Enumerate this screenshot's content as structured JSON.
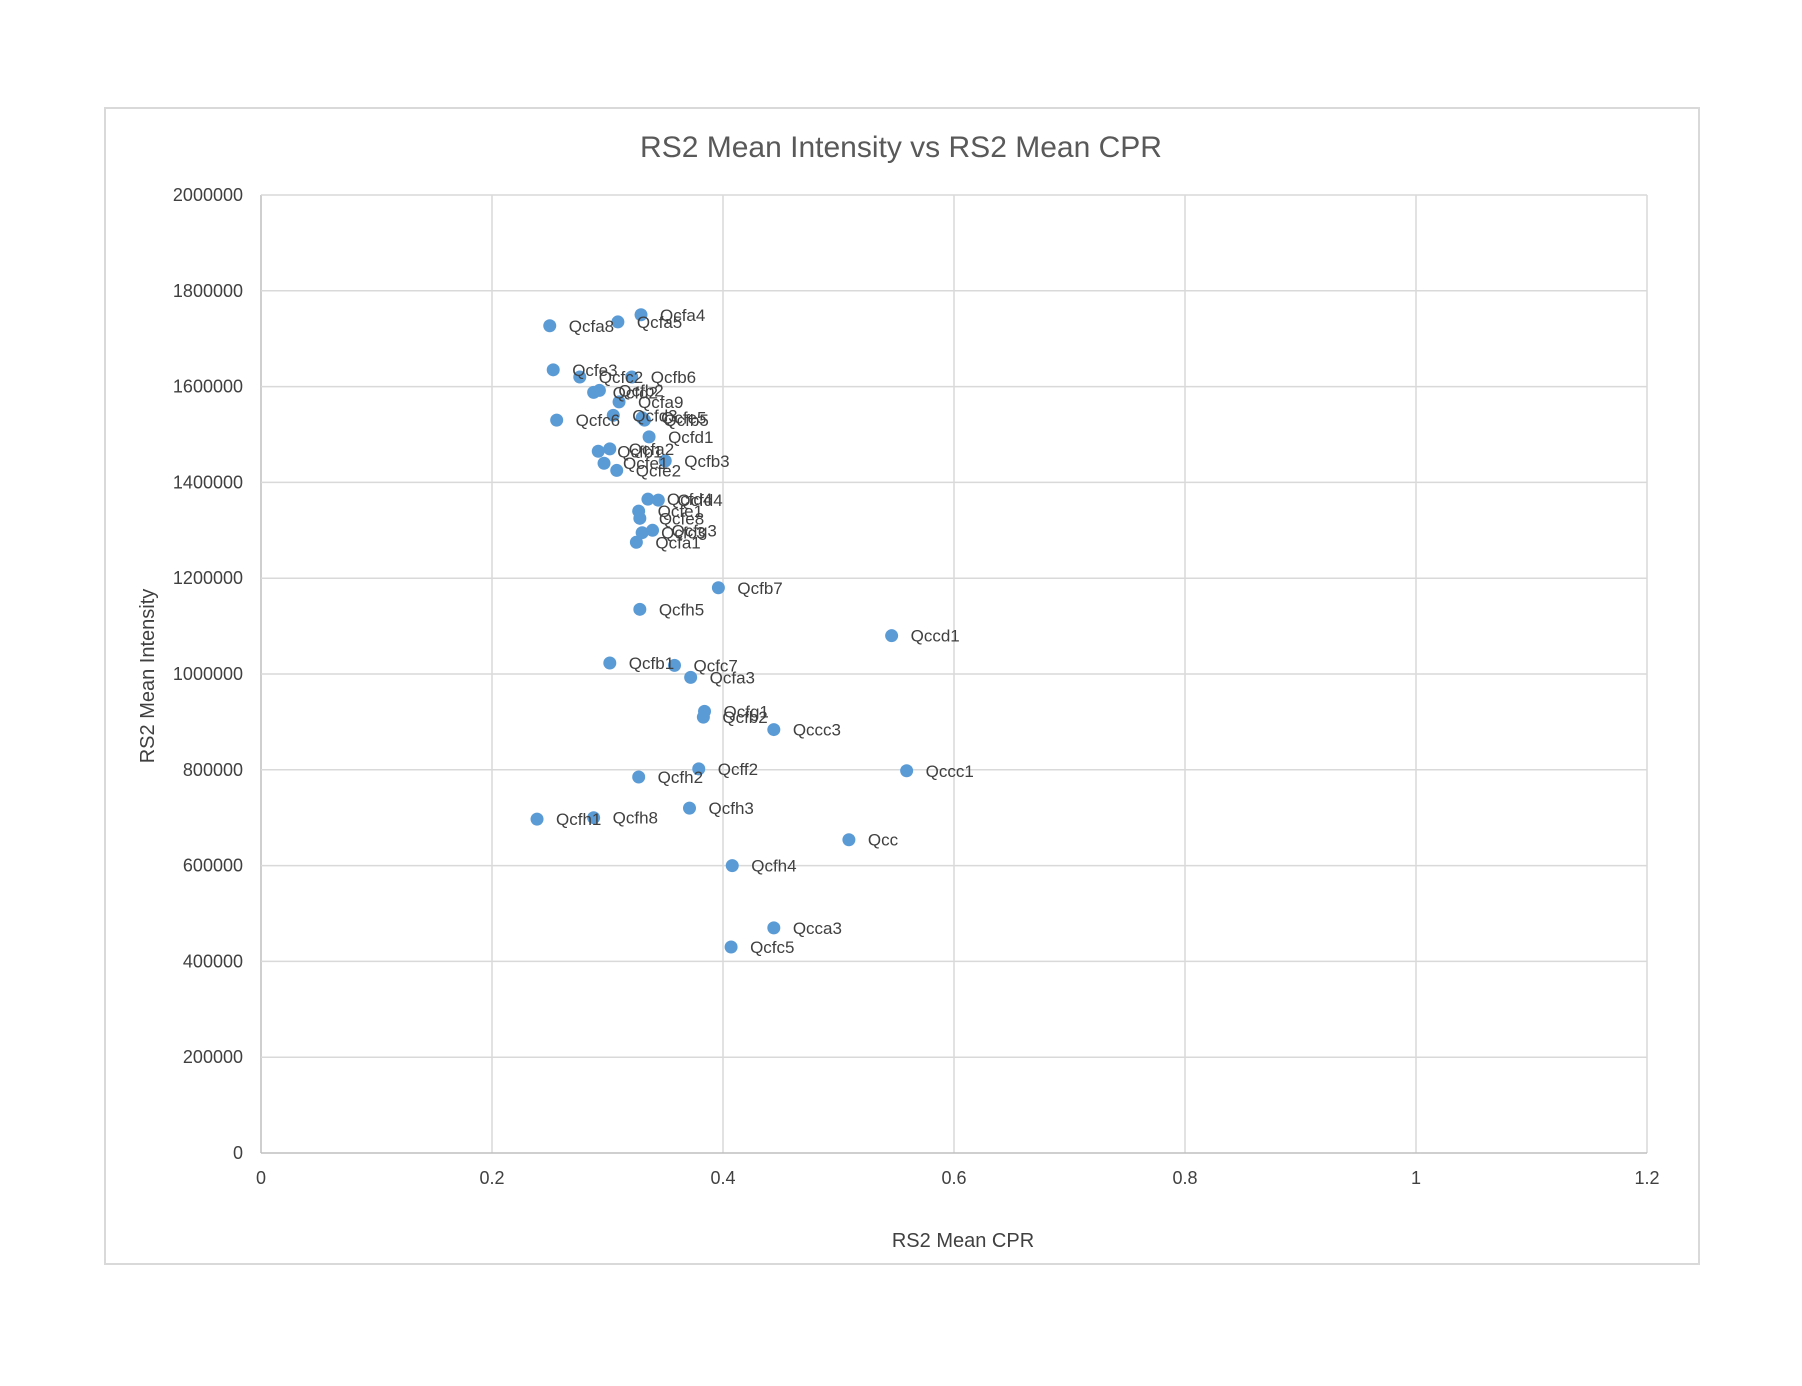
{
  "chart_data": {
    "type": "scatter",
    "title": "RS2 Mean Intensity vs RS2 Mean CPR",
    "xlabel": "RS2 Mean CPR",
    "ylabel": "RS2 Mean Intensity",
    "xlim": [
      0,
      1.2
    ],
    "ylim": [
      0,
      2000000
    ],
    "x_ticks": [
      "0",
      "0.2",
      "0.4",
      "0.6",
      "0.8",
      "1",
      "1.2"
    ],
    "y_ticks": [
      "0",
      "200000",
      "400000",
      "600000",
      "800000",
      "1000000",
      "1200000",
      "1400000",
      "1600000",
      "1800000",
      "2000000"
    ],
    "grid": true,
    "legend": "none",
    "series": [
      {
        "color": "#5b9bd5",
        "points": [
          {
            "label": "Qcfa4",
            "x": 0.329,
            "y": 1750000
          },
          {
            "label": "Qcfa5",
            "x": 0.309,
            "y": 1735000
          },
          {
            "label": "Qcfa8",
            "x": 0.25,
            "y": 1727000
          },
          {
            "label": "Qcfe3",
            "x": 0.253,
            "y": 1635000
          },
          {
            "label": "Qcfc2",
            "x": 0.276,
            "y": 1620000
          },
          {
            "label": "Qcfb6",
            "x": 0.321,
            "y": 1620000
          },
          {
            "label": "Qcfd2",
            "x": 0.288,
            "y": 1588000
          },
          {
            "label": "Qcfb2",
            "x": 0.293,
            "y": 1592000
          },
          {
            "label": "Qcfa9",
            "x": 0.31,
            "y": 1568000
          },
          {
            "label": "Qcfc6",
            "x": 0.256,
            "y": 1530000
          },
          {
            "label": "Qcfd3",
            "x": 0.305,
            "y": 1540000
          },
          {
            "label": "Qcfe5",
            "x": 0.33,
            "y": 1535000
          },
          {
            "label": "Qcfb5",
            "x": 0.332,
            "y": 1530000
          },
          {
            "label": "Qcfd1",
            "x": 0.336,
            "y": 1495000
          },
          {
            "label": "Qcfa2",
            "x": 0.302,
            "y": 1470000
          },
          {
            "label": "Qcfb1",
            "x": 0.292,
            "y": 1465000
          },
          {
            "label": "Qcfb3",
            "x": 0.35,
            "y": 1445000
          },
          {
            "label": "Qcfe1",
            "x": 0.297,
            "y": 1440000
          },
          {
            "label": "Qcfe2",
            "x": 0.308,
            "y": 1425000
          },
          {
            "label": "Qcfd4",
            "x": 0.335,
            "y": 1365000
          },
          {
            "label": "Qcfd4",
            "x": 0.344,
            "y": 1363000
          },
          {
            "label": "Qcfe1",
            "x": 0.327,
            "y": 1340000
          },
          {
            "label": "Qcfe8",
            "x": 0.328,
            "y": 1325000
          },
          {
            "label": "Qcfg3",
            "x": 0.339,
            "y": 1300000
          },
          {
            "label": "Qcfc3",
            "x": 0.33,
            "y": 1295000
          },
          {
            "label": "Qcfa1",
            "x": 0.325,
            "y": 1275000
          },
          {
            "label": "Qcfb7",
            "x": 0.396,
            "y": 1180000
          },
          {
            "label": "Qcfh5",
            "x": 0.328,
            "y": 1135000
          },
          {
            "label": "Qccd1",
            "x": 0.546,
            "y": 1080000
          },
          {
            "label": "Qcfb1",
            "x": 0.302,
            "y": 1023000
          },
          {
            "label": "Qcfc7",
            "x": 0.358,
            "y": 1018000
          },
          {
            "label": "Qcfa3",
            "x": 0.372,
            "y": 993000
          },
          {
            "label": "Qcfg1",
            "x": 0.384,
            "y": 922000
          },
          {
            "label": "Qcfb2",
            "x": 0.383,
            "y": 910000
          },
          {
            "label": "Qccc3",
            "x": 0.444,
            "y": 884000
          },
          {
            "label": "Qcff2",
            "x": 0.379,
            "y": 802000
          },
          {
            "label": "Qccc1",
            "x": 0.559,
            "y": 798000
          },
          {
            "label": "Qcfh2",
            "x": 0.327,
            "y": 785000
          },
          {
            "label": "Qcfh3",
            "x": 0.371,
            "y": 720000
          },
          {
            "label": "Qcfh1",
            "x": 0.239,
            "y": 697000
          },
          {
            "label": "Qcfh8",
            "x": 0.288,
            "y": 700000
          },
          {
            "label": "Qcc",
            "x": 0.509,
            "y": 654000
          },
          {
            "label": "Qcfh4",
            "x": 0.408,
            "y": 600000
          },
          {
            "label": "Qcca3",
            "x": 0.444,
            "y": 470000
          },
          {
            "label": "Qcfc5",
            "x": 0.407,
            "y": 430000
          }
        ]
      }
    ]
  }
}
